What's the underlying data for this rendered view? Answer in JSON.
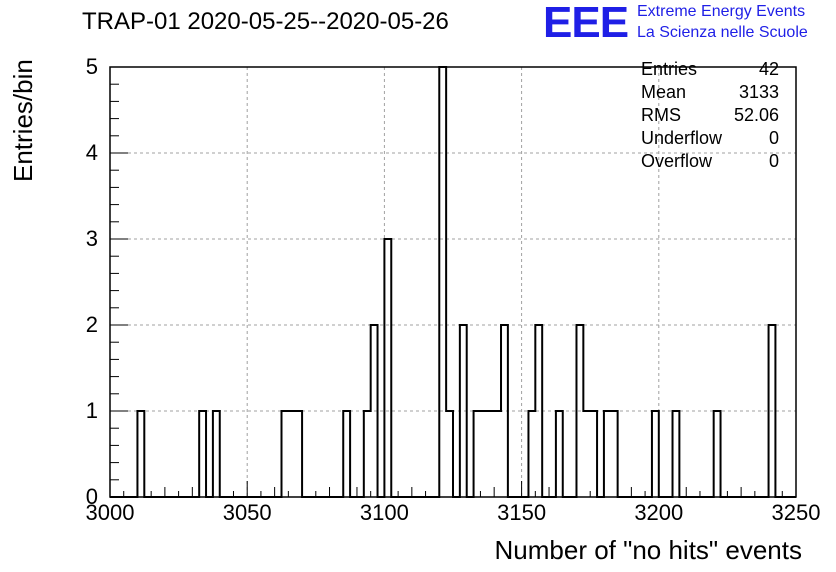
{
  "chart_data": {
    "type": "bar",
    "title": "TRAP-01 2020-05-25--2020-05-26",
    "xlabel": "Number of \"no hits\" events",
    "ylabel": "Entries/bin",
    "xlim": [
      3000,
      3250
    ],
    "ylim": [
      0,
      5
    ],
    "bin_width": 2.5,
    "x_ticks": [
      "3000",
      "3050",
      "3100",
      "3150",
      "3200",
      "3250"
    ],
    "y_ticks": [
      "0",
      "1",
      "2",
      "3",
      "4",
      "5"
    ],
    "grid": true,
    "bins": [
      {
        "x": 3010,
        "value": 1
      },
      {
        "x": 3032.5,
        "value": 1
      },
      {
        "x": 3037.5,
        "value": 1
      },
      {
        "x": 3062.5,
        "value": 1
      },
      {
        "x": 3065,
        "value": 1
      },
      {
        "x": 3067.5,
        "value": 1
      },
      {
        "x": 3085,
        "value": 1
      },
      {
        "x": 3092.5,
        "value": 1
      },
      {
        "x": 3095,
        "value": 2
      },
      {
        "x": 3100,
        "value": 3
      },
      {
        "x": 3120,
        "value": 5
      },
      {
        "x": 3122.5,
        "value": 1
      },
      {
        "x": 3127.5,
        "value": 2
      },
      {
        "x": 3132.5,
        "value": 1
      },
      {
        "x": 3135,
        "value": 1
      },
      {
        "x": 3137.5,
        "value": 1
      },
      {
        "x": 3140,
        "value": 1
      },
      {
        "x": 3142.5,
        "value": 2
      },
      {
        "x": 3152.5,
        "value": 1
      },
      {
        "x": 3155,
        "value": 2
      },
      {
        "x": 3162.5,
        "value": 1
      },
      {
        "x": 3170,
        "value": 2
      },
      {
        "x": 3172.5,
        "value": 1
      },
      {
        "x": 3175,
        "value": 1
      },
      {
        "x": 3180,
        "value": 1
      },
      {
        "x": 3182.5,
        "value": 1
      },
      {
        "x": 3197.5,
        "value": 1
      },
      {
        "x": 3205,
        "value": 1
      },
      {
        "x": 3220,
        "value": 1
      },
      {
        "x": 3240,
        "value": 2
      }
    ]
  },
  "stats": [
    {
      "label": "Entries",
      "value": "42"
    },
    {
      "label": "Mean",
      "value": "3133"
    },
    {
      "label": "RMS",
      "value": "52.06"
    },
    {
      "label": "Underflow",
      "value": "0"
    },
    {
      "label": "Overflow",
      "value": "0"
    }
  ],
  "logo": {
    "mark": "EEE",
    "line1": "Extreme Energy Events",
    "line2": "La Scienza nelle Scuole"
  },
  "colors": {
    "logo": "#1f1fe6",
    "line": "#000000",
    "grid": "#a0a0a0"
  }
}
